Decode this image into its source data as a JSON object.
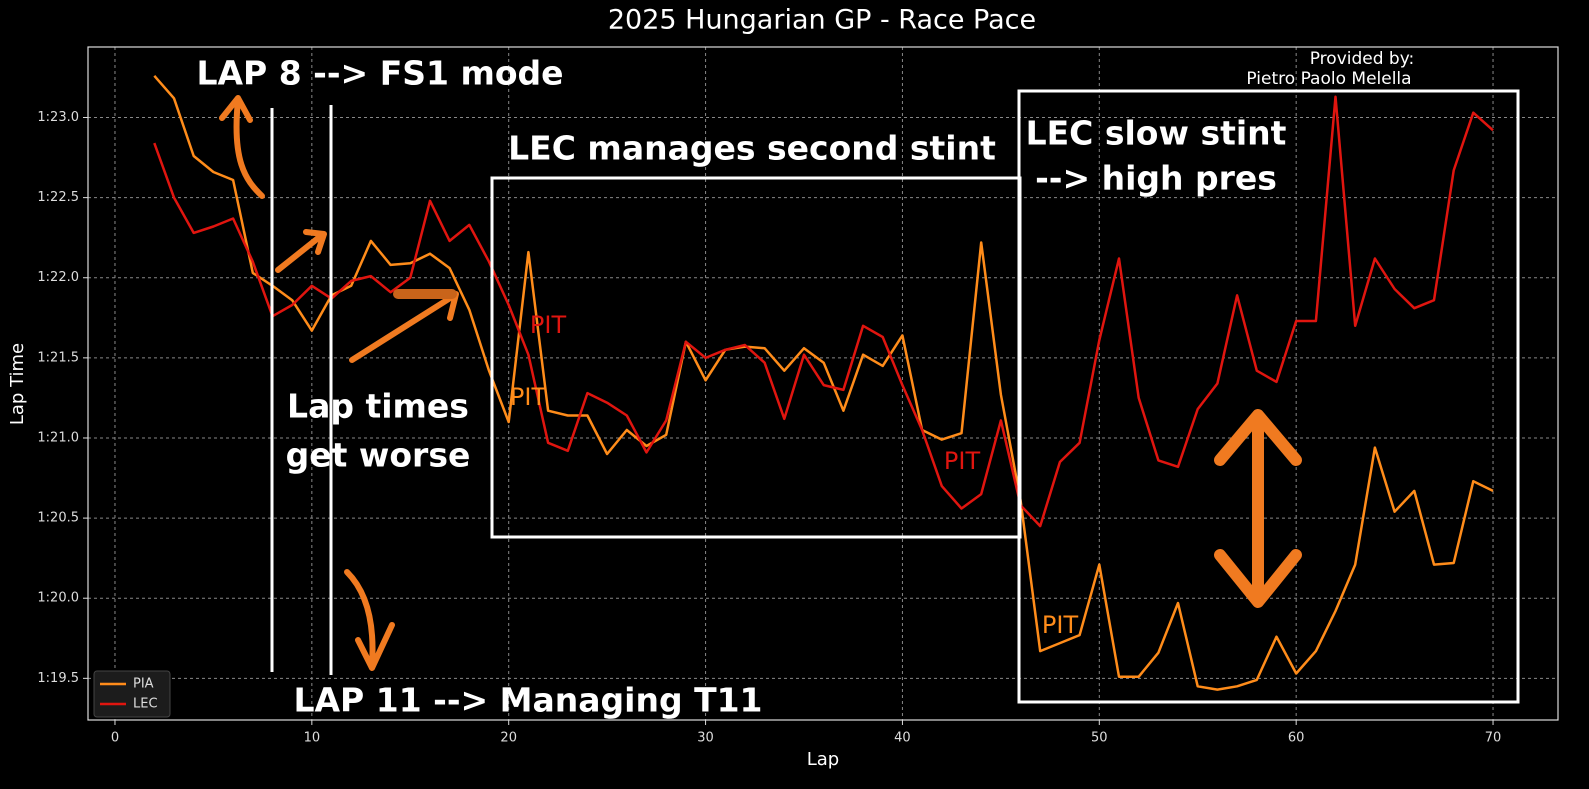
{
  "chart_data": {
    "type": "line",
    "title": "2025 Hungarian GP - Race Pace",
    "xlabel": "Lap",
    "ylabel": "Lap Time",
    "x": [
      2,
      3,
      4,
      5,
      6,
      7,
      8,
      9,
      10,
      11,
      12,
      13,
      14,
      15,
      16,
      17,
      18,
      19,
      20,
      21,
      22,
      23,
      24,
      25,
      26,
      27,
      28,
      29,
      30,
      31,
      32,
      33,
      34,
      35,
      36,
      37,
      38,
      39,
      40,
      41,
      42,
      43,
      44,
      45,
      46,
      47,
      48,
      49,
      50,
      51,
      52,
      53,
      54,
      55,
      56,
      57,
      58,
      59,
      60,
      61,
      62,
      63,
      64,
      65,
      66,
      67,
      68,
      69,
      70
    ],
    "series": [
      {
        "name": "PIA",
        "color": "#ff8c1a",
        "values": [
          83.26,
          83.12,
          82.76,
          82.66,
          82.61,
          82.03,
          81.95,
          81.86,
          81.67,
          81.89,
          81.95,
          82.23,
          82.08,
          82.09,
          82.15,
          82.06,
          81.8,
          81.42,
          81.1,
          82.16,
          81.17,
          81.14,
          81.14,
          80.9,
          81.05,
          80.95,
          81.02,
          81.6,
          81.36,
          81.55,
          81.57,
          81.56,
          81.42,
          81.56,
          81.47,
          81.17,
          81.52,
          81.45,
          81.64,
          81.05,
          80.99,
          81.03,
          82.22,
          81.27,
          80.61,
          79.67,
          79.72,
          79.77,
          80.21,
          79.51,
          79.51,
          79.66,
          79.97,
          79.45,
          79.43,
          79.45,
          79.49,
          79.76,
          79.53,
          79.67,
          79.92,
          80.21,
          80.94,
          80.54,
          80.67,
          80.21,
          80.22,
          80.73,
          80.67
        ]
      },
      {
        "name": "LEC",
        "color": "#e0150f",
        "values": [
          82.84,
          82.5,
          82.28,
          82.32,
          82.37,
          82.1,
          81.76,
          81.83,
          81.95,
          81.87,
          81.98,
          82.01,
          81.91,
          82.0,
          82.48,
          82.23,
          82.33,
          82.1,
          81.83,
          81.52,
          80.97,
          80.92,
          81.28,
          81.22,
          81.14,
          80.91,
          81.11,
          81.6,
          81.5,
          81.55,
          81.58,
          81.47,
          81.12,
          81.52,
          81.33,
          81.3,
          81.7,
          81.63,
          81.33,
          81.05,
          80.7,
          80.56,
          80.65,
          81.11,
          80.58,
          80.45,
          80.85,
          80.97,
          81.61,
          82.12,
          81.25,
          80.86,
          80.82,
          81.18,
          81.34,
          81.89,
          81.42,
          81.35,
          81.73,
          81.73,
          83.13,
          81.7,
          82.12,
          81.93,
          81.81,
          81.86,
          82.67,
          83.03,
          82.92
        ]
      }
    ],
    "xlim": [
      -1.37,
      73.3
    ],
    "xticks": [
      0,
      10,
      20,
      30,
      40,
      50,
      60,
      70
    ],
    "ylim": [
      79.24,
      83.44
    ],
    "yticks": [
      {
        "value": 79.5,
        "label": "1:19.5"
      },
      {
        "value": 80.0,
        "label": "1:20.0"
      },
      {
        "value": 80.5,
        "label": "1:20.5"
      },
      {
        "value": 81.0,
        "label": "1:21.0"
      },
      {
        "value": 81.5,
        "label": "1:21.5"
      },
      {
        "value": 82.0,
        "label": "1:22.0"
      },
      {
        "value": 82.5,
        "label": "1:22.5"
      },
      {
        "value": 83.0,
        "label": "1:23.0"
      }
    ],
    "grid": true,
    "legend": "lower left",
    "annotations": [
      [
        "LAP 8 --> FS1 mode"
      ],
      [
        "LAP 11 --> Managing T11"
      ],
      [
        "Lap times",
        "get worse"
      ],
      [
        "LEC manages second stint"
      ],
      [
        "LEC slow stint",
        "--> high pres"
      ],
      [
        "Provided by:",
        "Pietro Paolo Melella"
      ]
    ],
    "pit_labels": [
      {
        "text": "PIT",
        "color": "#e0150f"
      },
      {
        "text": "PIT",
        "color": "#ff8c1a"
      },
      {
        "text": "PIT",
        "color": "#e0150f"
      },
      {
        "text": "PIT",
        "color": "#ff8c1a"
      }
    ]
  }
}
